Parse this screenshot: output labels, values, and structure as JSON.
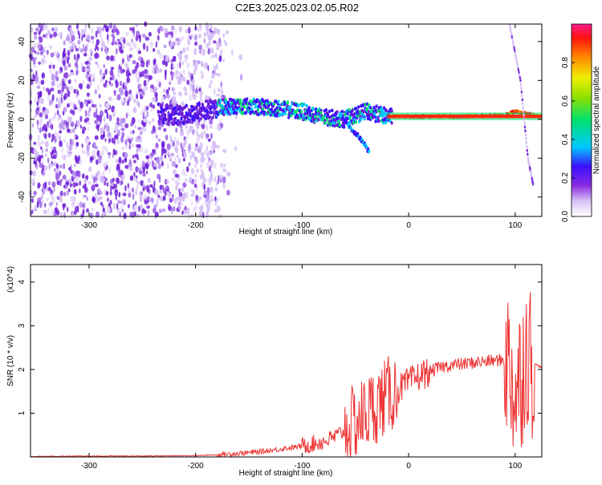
{
  "title": "C2E3.2025.023.02.05.R02",
  "chart_data": [
    {
      "type": "heatmap",
      "xlabel": "Height of straight line (km)",
      "ylabel": "Frequency (Hz)",
      "xlim": [
        -355,
        125
      ],
      "ylim": [
        -50,
        49
      ],
      "xticks": [
        -300,
        -200,
        -100,
        0,
        100
      ],
      "yticks": [
        -40,
        -20,
        0,
        20,
        40
      ],
      "colorbar": {
        "label": "Normalized spectral amplitude",
        "range": [
          0.0,
          1.0
        ],
        "ticks": [
          0.0,
          0.2,
          0.4,
          0.6,
          0.8
        ],
        "colormap": "rainbow"
      },
      "features": {
        "noise_region_x": [
          -355,
          -175
        ],
        "main_trace": [
          {
            "x": -235,
            "y": 3
          },
          {
            "x": -210,
            "y": 2
          },
          {
            "x": -180,
            "y": 6
          },
          {
            "x": -160,
            "y": 7
          },
          {
            "x": -130,
            "y": 6
          },
          {
            "x": -100,
            "y": 4
          },
          {
            "x": -80,
            "y": 1
          },
          {
            "x": -60,
            "y": 0
          },
          {
            "x": -40,
            "y": 4
          },
          {
            "x": -20,
            "y": 1.5
          },
          {
            "x": 0,
            "y": 1.5
          },
          {
            "x": 50,
            "y": 1.5
          },
          {
            "x": 90,
            "y": 2
          },
          {
            "x": 100,
            "y": 4
          },
          {
            "x": 125,
            "y": 1.5
          }
        ],
        "falling_branch": [
          {
            "x": -65,
            "y": 3
          },
          {
            "x": -55,
            "y": -4
          },
          {
            "x": -45,
            "y": -10
          },
          {
            "x": -37,
            "y": -17
          }
        ],
        "right_streak": [
          {
            "x": 95,
            "y": 48
          },
          {
            "x": 105,
            "y": 20
          },
          {
            "x": 112,
            "y": -20
          },
          {
            "x": 117,
            "y": -34
          }
        ]
      }
    },
    {
      "type": "line",
      "xlabel": "Height of straight line (km)",
      "ylabel": "SNR (10 * v/v)",
      "y_multiplier": "(x10^4)",
      "xlim": [
        -355,
        125
      ],
      "ylim": [
        0,
        4.4
      ],
      "xticks": [
        -300,
        -200,
        -100,
        0,
        100
      ],
      "yticks": [
        1,
        2,
        3,
        4
      ],
      "series": [
        {
          "color": "#ee3333",
          "x": [
            -355,
            -300,
            -250,
            -200,
            -180,
            -160,
            -140,
            -120,
            -100,
            -90,
            -80,
            -70,
            -60,
            -50,
            -40,
            -30,
            -20,
            -10,
            0,
            10,
            20,
            30,
            40,
            50,
            60,
            70,
            80,
            90,
            95,
            100,
            105,
            110,
            115,
            120,
            125
          ],
          "y": [
            0.01,
            0.02,
            0.02,
            0.03,
            0.05,
            0.08,
            0.12,
            0.18,
            0.25,
            0.3,
            0.35,
            0.45,
            0.6,
            0.8,
            1.0,
            1.2,
            1.4,
            1.55,
            1.7,
            1.85,
            1.95,
            2.05,
            2.1,
            2.12,
            2.15,
            2.18,
            2.2,
            2.22,
            2.1,
            1.4,
            1.8,
            2.5,
            2.2,
            2.1,
            2.05
          ]
        }
      ]
    }
  ]
}
